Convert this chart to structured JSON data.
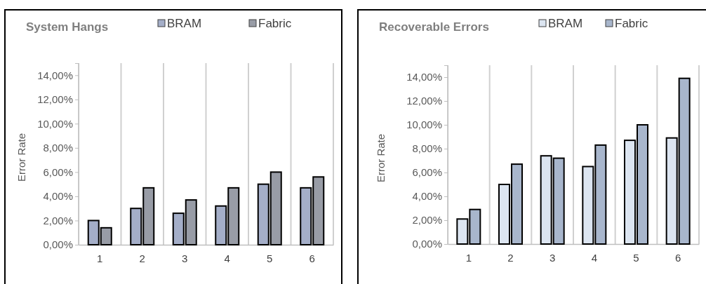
{
  "chart_data": [
    {
      "type": "bar",
      "title": "System Hangs",
      "ylabel": "Error Rate",
      "categories": [
        "1",
        "2",
        "3",
        "4",
        "5",
        "6"
      ],
      "series": [
        {
          "name": "BRAM",
          "color": "#a4aec8",
          "values": [
            2.0,
            3.0,
            2.6,
            3.2,
            5.0,
            4.7
          ]
        },
        {
          "name": "Fabric",
          "color": "#989ca6",
          "values": [
            1.4,
            4.7,
            3.7,
            4.7,
            6.0,
            5.6
          ]
        }
      ],
      "ylim": [
        0,
        15
      ],
      "yticks": [
        {
          "value": 0,
          "label": "0,00%"
        },
        {
          "value": 2,
          "label": "2,00%"
        },
        {
          "value": 4,
          "label": "4,00%"
        },
        {
          "value": 6,
          "label": "6,00%"
        },
        {
          "value": 8,
          "label": "8,00%"
        },
        {
          "value": 10,
          "label": "10,00%"
        },
        {
          "value": 12,
          "label": "12,00%"
        },
        {
          "value": 14,
          "label": "14,00%"
        }
      ],
      "grid": "x",
      "legend": "top right"
    },
    {
      "type": "bar",
      "title": "Recoverable Errors",
      "ylabel": "Error Rate",
      "categories": [
        "1",
        "2",
        "3",
        "4",
        "5",
        "6"
      ],
      "series": [
        {
          "name": "BRAM",
          "color": "#dce5f1",
          "values": [
            2.1,
            5.0,
            7.4,
            6.5,
            8.7,
            8.9
          ]
        },
        {
          "name": "Fabric",
          "color": "#a8b6cc",
          "values": [
            2.9,
            6.7,
            7.2,
            8.3,
            10.0,
            13.9
          ]
        }
      ],
      "ylim": [
        0,
        15
      ],
      "yticks": [
        {
          "value": 0,
          "label": "0,00%"
        },
        {
          "value": 2,
          "label": "2,00%"
        },
        {
          "value": 4,
          "label": "4,00%"
        },
        {
          "value": 6,
          "label": "6,00%"
        },
        {
          "value": 8,
          "label": "8,00%"
        },
        {
          "value": 10,
          "label": "10,00%"
        },
        {
          "value": 12,
          "label": "12,00%"
        },
        {
          "value": 14,
          "label": "14,00%"
        }
      ],
      "grid": "x",
      "legend": "top right"
    }
  ]
}
